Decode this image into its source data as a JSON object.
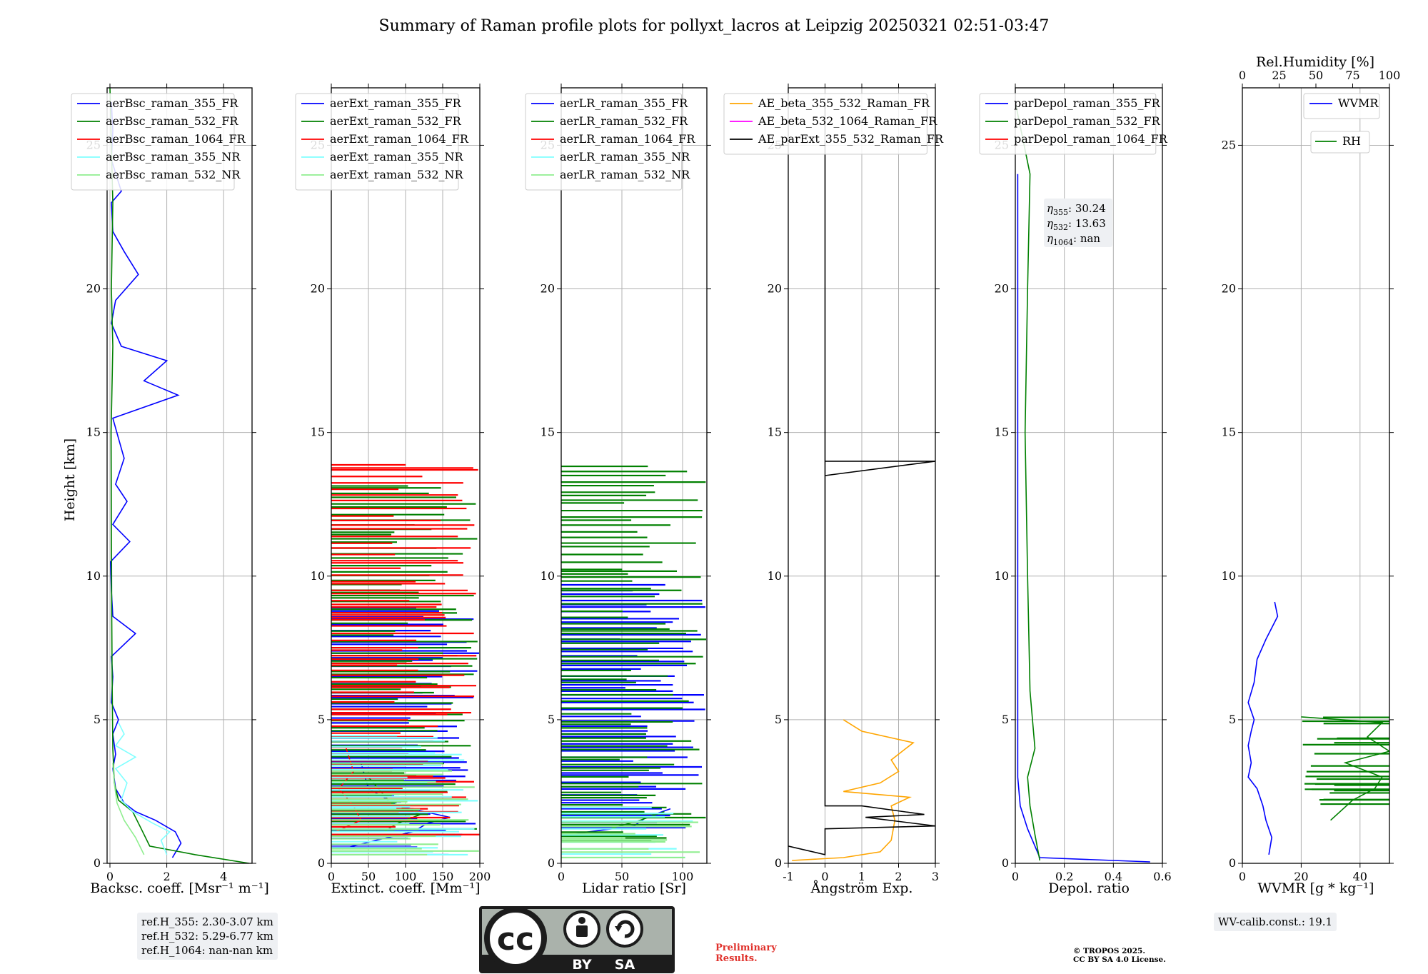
{
  "title": "Summary of Raman profile plots for pollyxt_lacros at Leipzig 20250321 02:51-03:47",
  "colors": {
    "blue": "#0000ff",
    "green": "#008000",
    "red": "#ff0000",
    "cyan": "#80ffff",
    "lightgreen": "#90ee90",
    "orange": "#ffa500",
    "magenta": "#ff00ff",
    "black": "#000000"
  },
  "ylabel": "Height [km]",
  "yrange": [
    0,
    27
  ],
  "yticks": [
    0,
    5,
    10,
    15,
    20,
    25
  ],
  "panels": [
    {
      "xlabel": "Backsc. coeff. [Msr⁻¹ m⁻¹]",
      "xlim": [
        -0.1,
        5
      ],
      "xticks": [
        0,
        2,
        4
      ],
      "legend": [
        "aerBsc_raman_355_FR",
        "aerBsc_raman_532_FR",
        "aerBsc_raman_1064_FR",
        "aerBsc_raman_355_NR",
        "aerBsc_raman_532_NR"
      ],
      "legend_colors": [
        "blue",
        "green",
        "red",
        "cyan",
        "lightgreen"
      ]
    },
    {
      "xlabel": "Extinct. coeff. [Mm⁻¹]",
      "xlim": [
        0,
        200
      ],
      "xticks": [
        0,
        50,
        100,
        150,
        200
      ],
      "legend": [
        "aerExt_raman_355_FR",
        "aerExt_raman_532_FR",
        "aerExt_raman_1064_FR",
        "aerExt_raman_355_NR",
        "aerExt_raman_532_NR"
      ],
      "legend_colors": [
        "blue",
        "green",
        "red",
        "cyan",
        "lightgreen"
      ]
    },
    {
      "xlabel": "Lidar ratio [Sr]",
      "xlim": [
        0,
        120
      ],
      "xticks": [
        0,
        50,
        100
      ],
      "legend": [
        "aerLR_raman_355_FR",
        "aerLR_raman_532_FR",
        "aerLR_raman_1064_FR",
        "aerLR_raman_355_NR",
        "aerLR_raman_532_NR"
      ],
      "legend_colors": [
        "blue",
        "green",
        "red",
        "cyan",
        "lightgreen"
      ]
    },
    {
      "xlabel": "Ångström Exp.",
      "xlim": [
        -1,
        3
      ],
      "xticks": [
        -1,
        0,
        1,
        2,
        3
      ],
      "legend": [
        "AE_beta_355_532_Raman_FR",
        "AE_beta_532_1064_Raman_FR",
        "AE_parExt_355_532_Raman_FR"
      ],
      "legend_colors": [
        "orange",
        "magenta",
        "black"
      ]
    },
    {
      "xlabel": "Depol. ratio",
      "xlim": [
        0,
        0.6
      ],
      "xticks": [
        0.0,
        0.2,
        0.4,
        0.6
      ],
      "legend": [
        "parDepol_raman_355_FR",
        "parDepol_raman_532_FR",
        "parDepol_raman_1064_FR"
      ],
      "legend_colors": [
        "blue",
        "green",
        "red"
      ]
    },
    {
      "xlabel": "WVMR [g * kg⁻¹]",
      "xlim": [
        0,
        50
      ],
      "xticks": [
        0,
        20,
        40
      ],
      "legend": [
        "WVMR"
      ],
      "legend_colors": [
        "blue"
      ],
      "top_label": "Rel.Humidity [%]",
      "top_ticks": [
        0,
        25,
        50,
        75,
        100
      ],
      "legend2": [
        "RH"
      ],
      "legend2_colors": [
        "green"
      ]
    }
  ],
  "depol_annotation": {
    "eta355": "30.24",
    "eta532": "13.63",
    "eta1064": "nan"
  },
  "ref_heights": [
    "ref.H_355: 2.30-3.07 km",
    "ref.H_532: 5.29-6.77 km",
    "ref.H_1064: nan-nan km"
  ],
  "wv_calib": "WV-calib.const.: 19.1",
  "preliminary": [
    "Preliminary",
    "Results."
  ],
  "copyright": [
    "© TROPOS 2025.",
    "CC BY SA 4.0 License."
  ],
  "cc_logo": {
    "cc": "cc",
    "by": "BY",
    "sa": "SA"
  },
  "chart_data": [
    {
      "type": "line",
      "title": "",
      "xlabel": "Backsc. coeff. [Msr⁻¹ m⁻¹]",
      "ylabel": "Height [km]",
      "xlim": [
        -0.1,
        5
      ],
      "ylim": [
        0,
        27
      ],
      "series": [
        {
          "name": "aerBsc_raman_355_FR",
          "color": "blue",
          "style": "line",
          "points": [
            [
              2.2,
              0.2
            ],
            [
              2.5,
              0.7
            ],
            [
              2.3,
              1.1
            ],
            [
              1.6,
              1.5
            ],
            [
              0.9,
              1.8
            ],
            [
              0.5,
              2.1
            ],
            [
              0.2,
              2.6
            ],
            [
              0.1,
              3.3
            ],
            [
              0.2,
              3.8
            ],
            [
              0.1,
              4.5
            ],
            [
              0.3,
              5.0
            ],
            [
              0.05,
              5.6
            ],
            [
              0.1,
              6.5
            ],
            [
              0.05,
              7.2
            ],
            [
              0.9,
              8.0
            ],
            [
              0.1,
              8.6
            ],
            [
              0.05,
              9.5
            ],
            [
              0.02,
              10.5
            ],
            [
              0.7,
              11.2
            ],
            [
              0.1,
              11.8
            ],
            [
              0.6,
              12.6
            ],
            [
              0.2,
              13.2
            ],
            [
              0.5,
              14.1
            ],
            [
              0.3,
              14.8
            ],
            [
              0.1,
              15.5
            ],
            [
              2.4,
              16.3
            ],
            [
              1.2,
              16.8
            ],
            [
              2.0,
              17.5
            ],
            [
              0.4,
              18.0
            ],
            [
              0.05,
              18.8
            ],
            [
              0.2,
              19.6
            ],
            [
              1.0,
              20.5
            ],
            [
              0.5,
              21.3
            ],
            [
              0.1,
              22.0
            ],
            [
              0.05,
              23.0
            ],
            [
              0.4,
              23.4
            ],
            [
              0.05,
              24.5
            ],
            [
              0.1,
              25.5
            ],
            [
              0.05,
              26.5
            ]
          ]
        },
        {
          "name": "aerBsc_raman_532_FR",
          "color": "green",
          "style": "line",
          "points": [
            [
              4.9,
              0.0
            ],
            [
              3.0,
              0.3
            ],
            [
              1.4,
              0.6
            ],
            [
              1.1,
              1.2
            ],
            [
              0.8,
              1.8
            ],
            [
              0.3,
              2.2
            ],
            [
              0.15,
              2.8
            ],
            [
              0.1,
              4.0
            ],
            [
              0.08,
              6.0
            ],
            [
              0.06,
              9.0
            ],
            [
              0.05,
              12.0
            ],
            [
              0.04,
              15.0
            ],
            [
              0.1,
              18.0
            ],
            [
              0.05,
              20.0
            ],
            [
              0.1,
              23.0
            ],
            [
              0.0,
              27.0
            ]
          ]
        },
        {
          "name": "aerBsc_raman_355_NR",
          "color": "cyan",
          "style": "line",
          "points": [
            [
              2.0,
              0.3
            ],
            [
              1.8,
              0.8
            ],
            [
              2.1,
              1.1
            ],
            [
              1.5,
              1.4
            ],
            [
              0.8,
              1.8
            ],
            [
              0.4,
              2.2
            ],
            [
              0.6,
              2.8
            ],
            [
              0.2,
              3.3
            ],
            [
              0.9,
              3.7
            ],
            [
              0.2,
              4.1
            ],
            [
              0.5,
              4.5
            ],
            [
              0.3,
              4.9
            ]
          ]
        },
        {
          "name": "aerBsc_raman_532_NR",
          "color": "lightgreen",
          "style": "line",
          "points": [
            [
              1.2,
              0.3
            ],
            [
              0.9,
              0.9
            ],
            [
              0.5,
              1.5
            ],
            [
              0.25,
              2.1
            ],
            [
              0.15,
              2.8
            ],
            [
              0.1,
              3.5
            ]
          ]
        }
      ]
    },
    {
      "type": "line",
      "title": "",
      "xlabel": "Extinct. coeff. [Mm⁻¹]",
      "ylabel": "Height [km]",
      "xlim": [
        0,
        200
      ],
      "ylim": [
        0,
        27
      ],
      "series": [
        {
          "name": "aerExt_raman_355_FR",
          "color": "blue",
          "style": "noisy",
          "range": [
            0.3,
            9.0
          ],
          "smooth": [
            [
              15,
              0.5
            ],
            [
              60,
              0.8
            ],
            [
              110,
              1.1
            ],
            [
              130,
              1.4
            ],
            [
              160,
              1.6
            ],
            [
              90,
              2.0
            ],
            [
              50,
              2.6
            ],
            [
              40,
              3.5
            ]
          ]
        },
        {
          "name": "aerExt_raman_532_FR",
          "color": "green",
          "style": "noisy",
          "range": [
            1.0,
            13.2
          ],
          "smooth": [
            [
              70,
              1.1
            ],
            [
              90,
              1.4
            ],
            [
              120,
              1.7
            ],
            [
              80,
              2.1
            ],
            [
              50,
              3.0
            ]
          ]
        },
        {
          "name": "aerExt_raman_1064_FR",
          "color": "red",
          "style": "noisy",
          "range": [
            1.0,
            14.0
          ],
          "smooth": [
            [
              5,
              1.1
            ],
            [
              40,
              1.5
            ],
            [
              30,
              2.0
            ],
            [
              10,
              2.6
            ],
            [
              30,
              3.2
            ],
            [
              20,
              4.0
            ]
          ]
        },
        {
          "name": "aerExt_raman_355_NR",
          "color": "cyan",
          "style": "noisy",
          "range": [
            0.3,
            4.6
          ]
        },
        {
          "name": "aerExt_raman_532_NR",
          "color": "lightgreen",
          "style": "noisy",
          "range": [
            0.3,
            3.5
          ]
        }
      ]
    },
    {
      "type": "line",
      "title": "",
      "xlabel": "Lidar ratio [Sr]",
      "ylabel": "Height [km]",
      "xlim": [
        0,
        120
      ],
      "ylim": [
        0,
        27
      ],
      "series": [
        {
          "name": "aerLR_raman_355_FR",
          "color": "blue",
          "style": "noisy",
          "range": [
            1.0,
            9.8
          ],
          "smooth": [
            [
              5,
              1.0
            ],
            [
              60,
              1.3
            ],
            [
              70,
              1.6
            ],
            [
              90,
              1.9
            ]
          ]
        },
        {
          "name": "aerLR_raman_532_FR",
          "color": "green",
          "style": "noisy",
          "range": [
            0.8,
            13.9
          ],
          "smooth": [
            [
              40,
              1.2
            ],
            [
              65,
              1.5
            ],
            [
              85,
              1.8
            ]
          ]
        },
        {
          "name": "aerLR_raman_355_NR",
          "color": "cyan",
          "style": "noisy",
          "range": [
            0.2,
            2.0
          ]
        },
        {
          "name": "aerLR_raman_532_NR",
          "color": "lightgreen",
          "style": "noisy",
          "range": [
            0.2,
            1.5
          ]
        }
      ]
    },
    {
      "type": "line",
      "title": "",
      "xlabel": "Ångström Exp.",
      "ylabel": "Height [km]",
      "xlim": [
        -1,
        3
      ],
      "ylim": [
        0,
        27
      ],
      "series": [
        {
          "name": "AE_beta_355_532_Raman_FR",
          "color": "orange",
          "style": "line",
          "points": [
            [
              -0.9,
              0.1
            ],
            [
              0.5,
              0.2
            ],
            [
              1.5,
              0.4
            ],
            [
              1.8,
              0.8
            ],
            [
              1.9,
              1.5
            ],
            [
              1.8,
              2.0
            ],
            [
              2.3,
              2.3
            ],
            [
              0.5,
              2.5
            ],
            [
              1.5,
              2.8
            ],
            [
              2.0,
              3.2
            ],
            [
              1.8,
              3.6
            ],
            [
              2.4,
              4.2
            ],
            [
              1.0,
              4.6
            ],
            [
              0.5,
              5.0
            ]
          ]
        },
        {
          "name": "AE_parExt_355_532_Raman_FR",
          "color": "black",
          "style": "line",
          "points": [
            [
              -1,
              0.6
            ],
            [
              0,
              0.3
            ],
            [
              0,
              1.2
            ],
            [
              3.0,
              1.3
            ],
            [
              1.1,
              1.6
            ],
            [
              2.7,
              1.7
            ],
            [
              1.0,
              2.0
            ],
            [
              0,
              2.0
            ],
            [
              0,
              5.5
            ],
            [
              0,
              14.0
            ],
            [
              3.0,
              14.0
            ],
            [
              0,
              13.5
            ],
            [
              0,
              26.5
            ]
          ]
        }
      ]
    },
    {
      "type": "line",
      "title": "",
      "xlabel": "Depol. ratio",
      "ylabel": "Height [km]",
      "xlim": [
        0,
        0.6
      ],
      "ylim": [
        0,
        27
      ],
      "series": [
        {
          "name": "parDepol_raman_355_FR",
          "color": "blue",
          "style": "line",
          "points": [
            [
              0.55,
              0.05
            ],
            [
              0.1,
              0.2
            ],
            [
              0.08,
              0.6
            ],
            [
              0.05,
              1.2
            ],
            [
              0.02,
              2.0
            ],
            [
              0.01,
              3.0
            ],
            [
              0.01,
              5.0
            ],
            [
              0.01,
              10.0
            ],
            [
              0.01,
              20.0
            ],
            [
              0.01,
              24.0
            ]
          ]
        },
        {
          "name": "parDepol_raman_532_FR",
          "color": "green",
          "style": "line",
          "points": [
            [
              0.1,
              0.1
            ],
            [
              0.08,
              1.0
            ],
            [
              0.06,
              2.0
            ],
            [
              0.05,
              3.0
            ],
            [
              0.08,
              4.0
            ],
            [
              0.06,
              6.0
            ],
            [
              0.05,
              10.0
            ],
            [
              0.04,
              15.0
            ],
            [
              0.05,
              20.0
            ],
            [
              0.06,
              24.0
            ],
            [
              0.0,
              26.5
            ]
          ]
        }
      ]
    },
    {
      "type": "line",
      "title": "",
      "xlabel": "WVMR [g * kg⁻¹]",
      "ylabel": "Height [km]",
      "xlim": [
        0,
        50
      ],
      "ylim": [
        0,
        27
      ],
      "series": [
        {
          "name": "WVMR",
          "color": "blue",
          "style": "line",
          "points": [
            [
              9,
              0.3
            ],
            [
              10,
              0.9
            ],
            [
              8,
              1.5
            ],
            [
              7,
              2.0
            ],
            [
              5,
              2.6
            ],
            [
              2,
              3.0
            ],
            [
              3,
              3.5
            ],
            [
              2,
              4.1
            ],
            [
              3,
              4.6
            ],
            [
              4,
              5.0
            ],
            [
              2,
              5.6
            ],
            [
              4,
              6.3
            ],
            [
              5,
              7.1
            ],
            [
              8,
              7.8
            ],
            [
              12,
              8.6
            ],
            [
              11,
              9.1
            ]
          ]
        },
        {
          "name": "RH",
          "color": "green",
          "style": "line",
          "top_axis": "Rel.Humidity [%]",
          "points": [
            [
              60,
              1.5
            ],
            [
              75,
              2.2
            ],
            [
              90,
              2.6
            ],
            [
              95,
              3.0
            ],
            [
              70,
              3.5
            ],
            [
              100,
              3.9
            ],
            [
              85,
              4.4
            ],
            [
              95,
              4.9
            ],
            [
              40,
              5.1
            ]
          ]
        }
      ]
    }
  ]
}
